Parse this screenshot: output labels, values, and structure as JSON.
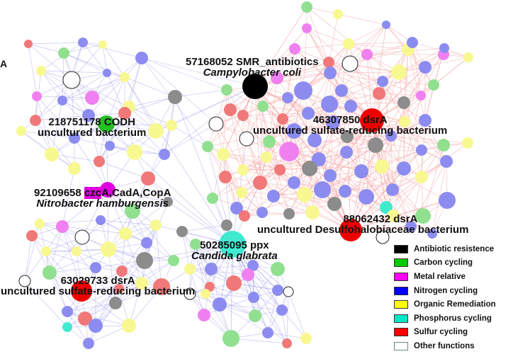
{
  "panel_letter": "A",
  "node_labels": [
    {
      "id": "n1",
      "line1": "57168052 SMR_antibiotics",
      "line2": "Campylobacter coli",
      "line2_italic": true
    },
    {
      "id": "n2",
      "line1": "46307850 dsrA",
      "line2": "uncultured sulfate-reducing bacterium",
      "line2_italic": false
    },
    {
      "id": "n3",
      "line1": "218751178 CODH",
      "line2": "uncultured bacterium",
      "line2_italic": false
    },
    {
      "id": "n4",
      "line1_pre": "92109658 ",
      "line1_hl": "czc",
      "line1_post": "A,CadA,CopA",
      "line2": "Nitrobacter hamburgensis",
      "line2_italic": true
    },
    {
      "id": "n5",
      "line1": "88062432 dsrA",
      "line2": "uncultured Desulfohalobiaceae bacterium",
      "line2_italic": false
    },
    {
      "id": "n6",
      "line1": "50285095 ppx",
      "line2": "Candida glabrata",
      "line2_italic": true
    },
    {
      "id": "n7",
      "line1": "63029733 dsrA",
      "line2": "uncultured sulfate-reducing bacterium",
      "line2_italic": false
    }
  ],
  "legend": [
    {
      "label": "Antibiotic resistence",
      "color": "#000000",
      "empty": false
    },
    {
      "label": "Carbon cycling",
      "color": "#00cc00",
      "empty": false
    },
    {
      "label": "Metal relative",
      "color": "#ff00ff",
      "empty": false
    },
    {
      "label": "Nitrogen cycling",
      "color": "#0000ff",
      "empty": false
    },
    {
      "label": "Organic Remediation",
      "color": "#ffff00",
      "empty": false
    },
    {
      "label": "Phosphorus cycling",
      "color": "#00e6c8",
      "empty": false
    },
    {
      "label": "Sulfur cycling",
      "color": "#ff0000",
      "empty": false
    },
    {
      "label": "Other functions",
      "color": "#ffffff",
      "empty": true
    }
  ],
  "node_colors": {
    "antibiotic": "#000000",
    "carbon": "#90e090",
    "carbon_hub": "#22c022",
    "metal": "#f080f0",
    "metal_hub": "#e000e0",
    "nitrogen": "#8c8cf0",
    "organic": "#f8f890",
    "phosphorus": "#40ead0",
    "sulfur": "#f07878",
    "sulfur_hub": "#ee0000",
    "grey": "#8c8c8c",
    "other": "#ffffff",
    "edge_blue": "#9a9ae8",
    "edge_red": "#f4a0a0"
  }
}
